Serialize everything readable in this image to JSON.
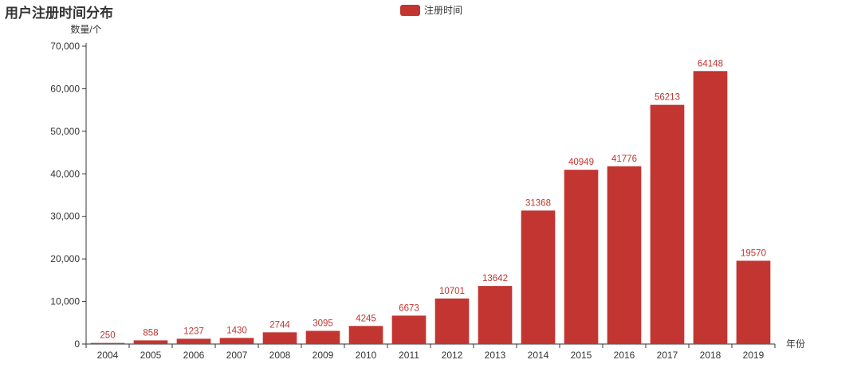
{
  "chart_data": {
    "type": "bar",
    "title": "用户注册时间分布",
    "legend": [
      "注册时间"
    ],
    "xlabel": "年份",
    "ylabel": "数量/个",
    "categories": [
      "2004",
      "2005",
      "2006",
      "2007",
      "2008",
      "2009",
      "2010",
      "2011",
      "2012",
      "2013",
      "2014",
      "2015",
      "2016",
      "2017",
      "2018",
      "2019"
    ],
    "series": [
      {
        "name": "注册时间",
        "values": [
          250,
          858,
          1237,
          1430,
          2744,
          3095,
          4245,
          6673,
          10701,
          13642,
          31368,
          40949,
          41776,
          56213,
          64148,
          19570
        ]
      }
    ],
    "ylim": [
      0,
      70000
    ],
    "yticks": [
      "0",
      "10,000",
      "20,000",
      "30,000",
      "40,000",
      "50,000",
      "60,000",
      "70,000"
    ],
    "grid": false,
    "legend_position": "top-center"
  },
  "colors": {
    "bar": "#c23531",
    "axis": "#333333"
  }
}
